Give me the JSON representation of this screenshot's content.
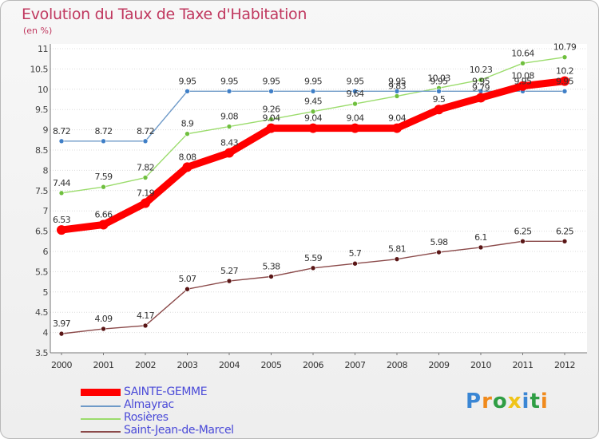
{
  "chart_data": {
    "type": "line",
    "title": "Evolution du Taux de Taxe d'Habitation",
    "ylabel": "(en %)",
    "xlabel": "",
    "categories": [
      "2000",
      "2001",
      "2002",
      "2003",
      "2004",
      "2005",
      "2006",
      "2007",
      "2008",
      "2009",
      "2010",
      "2011",
      "2012"
    ],
    "ylim": [
      3.5,
      11
    ],
    "yticks": [
      3.5,
      4,
      4.5,
      5,
      5.5,
      6,
      6.5,
      7,
      7.5,
      8,
      8.5,
      9,
      9.5,
      10,
      10.5,
      11
    ],
    "ytick_labels": [
      "3.5",
      "4",
      "4.5",
      "5",
      "5.5",
      "6",
      "6.5",
      "7",
      "7.5",
      "8",
      "8.5",
      "9",
      "9.5",
      "10",
      "10.5",
      "11"
    ],
    "series": [
      {
        "name": "SAINTE-GEMME",
        "color": "#ff0000",
        "marker": "#ff0000",
        "values": [
          6.53,
          6.66,
          7.19,
          8.08,
          8.43,
          9.04,
          9.04,
          9.04,
          9.04,
          9.5,
          9.79,
          10.08,
          10.2
        ],
        "labels": [
          "6.53",
          "6.66",
          "7.19",
          "8.08",
          "8.43",
          "9.04",
          "9.04",
          "9.04",
          "9.04",
          "9.5",
          "9.79",
          "10.08",
          "10.2"
        ]
      },
      {
        "name": "Almayrac",
        "color": "#6e9ac8",
        "marker": "#3f7fc7",
        "values": [
          8.72,
          8.72,
          8.72,
          9.95,
          9.95,
          9.95,
          9.95,
          9.95,
          9.95,
          9.95,
          9.95,
          9.95,
          9.95
        ],
        "labels": [
          "8.72",
          "8.72",
          "8.72",
          "9.95",
          "9.95",
          "9.95",
          "9.95",
          "9.95",
          "9.95",
          "9.95",
          "9.95",
          "9.95",
          "9.95"
        ]
      },
      {
        "name": "Rosières",
        "color": "#9bdc6c",
        "marker": "#6fbf3e",
        "values": [
          7.44,
          7.59,
          7.82,
          8.9,
          9.08,
          9.26,
          9.45,
          9.64,
          9.83,
          10.03,
          10.23,
          10.64,
          10.79
        ],
        "labels": [
          "7.44",
          "7.59",
          "7.82",
          "8.9",
          "9.08",
          "9.26",
          "9.45",
          "9.64",
          "9.83",
          "10.03",
          "10.23",
          "10.64",
          "10.79"
        ]
      },
      {
        "name": "Saint-Jean-de-Marcel",
        "color": "#8b4a4a",
        "marker": "#5a1616",
        "values": [
          3.97,
          4.09,
          4.17,
          5.07,
          5.27,
          5.38,
          5.59,
          5.7,
          5.81,
          5.98,
          6.1,
          6.25,
          6.25
        ],
        "labels": [
          "3.97",
          "4.09",
          "4.17",
          "5.07",
          "5.27",
          "5.38",
          "5.59",
          "5.7",
          "5.81",
          "5.98",
          "6.1",
          "6.25",
          "6.25"
        ]
      }
    ]
  },
  "legend": {
    "items": [
      {
        "label": "SAINTE-GEMME",
        "color": "#ff0000"
      },
      {
        "label": "Almayrac",
        "color": "#6e9ac8"
      },
      {
        "label": "Rosières",
        "color": "#9bdc6c"
      },
      {
        "label": "Saint-Jean-de-Marcel",
        "color": "#8b4a4a"
      }
    ]
  },
  "logo": {
    "text": "Proxiti",
    "letters": [
      "P",
      "r",
      "o",
      "x",
      "i",
      "t",
      "i"
    ],
    "colors": [
      "#3a86d4",
      "#f08a1c",
      "#2f9e44",
      "#f0c418",
      "#3a86d4",
      "#2f9e44",
      "#f08a1c"
    ]
  }
}
